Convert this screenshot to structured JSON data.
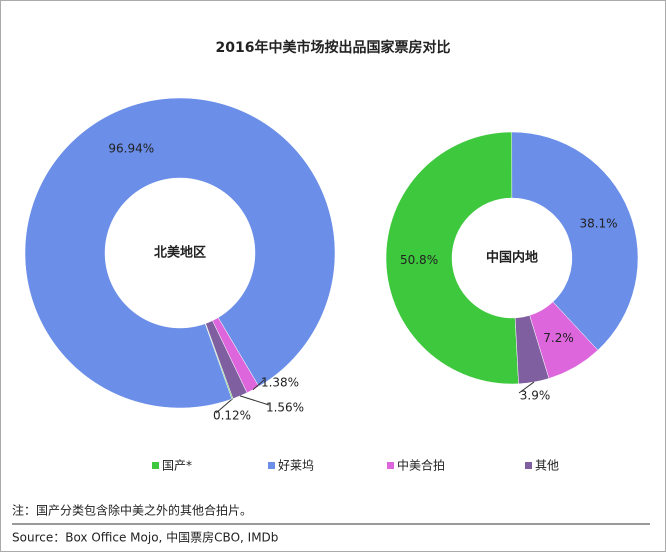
{
  "title": "2016年中美市场按出品国家票房对比",
  "chart_data": [
    {
      "type": "donut",
      "title": "北美地区",
      "categories": [
        "国产*",
        "好莱坞",
        "中美合拍",
        "其他"
      ],
      "colors": [
        "#3ec83e",
        "#6b8ee8",
        "#dd66dd",
        "#7f5f9f"
      ],
      "values": [
        0.12,
        96.94,
        1.38,
        1.56
      ],
      "value_labels": [
        "0.12%",
        "96.94%",
        "1.38%",
        "1.56%"
      ],
      "start_angle": 160
    },
    {
      "type": "donut",
      "title": "中国内地",
      "categories": [
        "国产*",
        "好莱坞",
        "中美合拍",
        "其他"
      ],
      "colors": [
        "#3ec83e",
        "#6b8ee8",
        "#dd66dd",
        "#7f5f9f"
      ],
      "values": [
        50.8,
        38.1,
        7.2,
        3.9
      ],
      "value_labels": [
        "50.8%",
        "38.1%",
        "7.2%",
        "3.9%"
      ],
      "start_angle": 177
    }
  ],
  "note": "注：国产分类包含除中美之外的其他合拍片。",
  "source": "Source：Box Office Mojo, 中国票房CBO, IMDb"
}
